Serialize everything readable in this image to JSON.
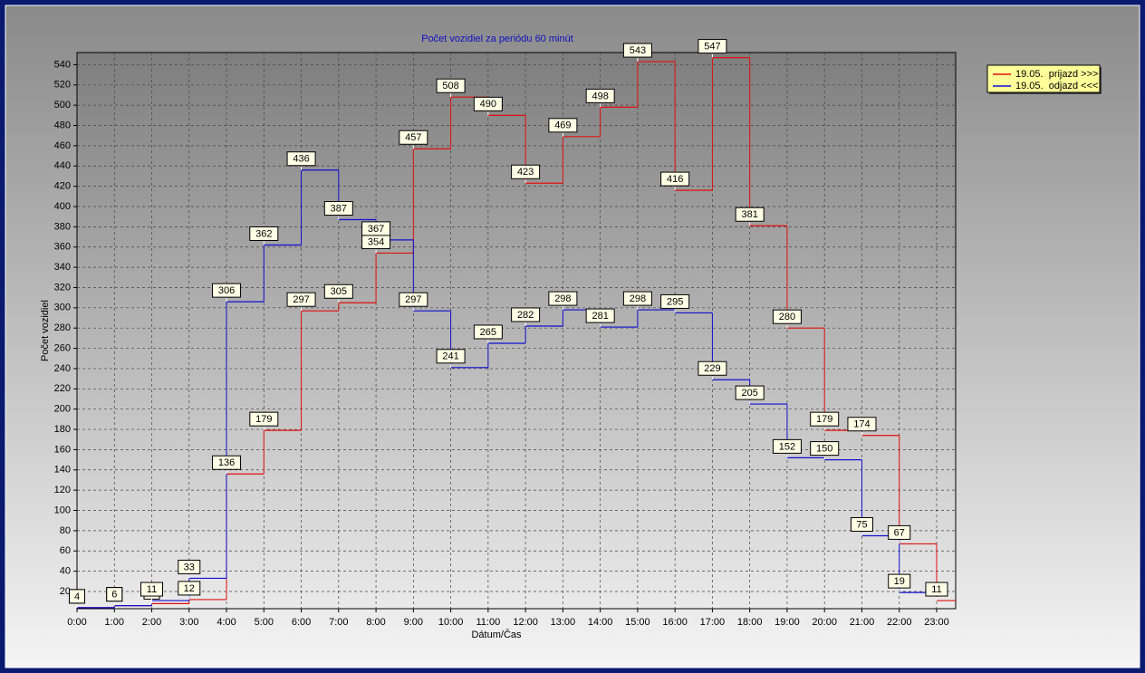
{
  "chart_data": {
    "type": "line",
    "step": true,
    "title": "Počet vozidiel za periódu 60 minút",
    "xlabel": "Dátum/Čas",
    "ylabel": "Počet vozidiel",
    "categories": [
      "0:00",
      "1:00",
      "2:00",
      "3:00",
      "4:00",
      "5:00",
      "6:00",
      "7:00",
      "8:00",
      "9:00",
      "10:00",
      "11:00",
      "12:00",
      "13:00",
      "14:00",
      "15:00",
      "16:00",
      "17:00",
      "18:00",
      "19:00",
      "20:00",
      "21:00",
      "22:00",
      "23:00"
    ],
    "series": [
      {
        "name": "19.05.  prijazd >>>",
        "color": "#e01010",
        "values": [
          4,
          6,
          8,
          12,
          136,
          179,
          297,
          305,
          354,
          457,
          508,
          490,
          423,
          469,
          498,
          543,
          416,
          547,
          381,
          280,
          179,
          174,
          67,
          11
        ]
      },
      {
        "name": "19.05.  odjazd <<<",
        "color": "#1010d0",
        "values": [
          4,
          6,
          11,
          33,
          306,
          362,
          436,
          387,
          367,
          297,
          241,
          265,
          282,
          298,
          281,
          298,
          295,
          229,
          205,
          152,
          150,
          75,
          19,
          null
        ]
      }
    ],
    "ylim": [
      3,
      552
    ],
    "yticks": [
      20,
      40,
      60,
      80,
      100,
      120,
      140,
      160,
      180,
      200,
      220,
      240,
      260,
      280,
      300,
      320,
      340,
      360,
      380,
      400,
      420,
      440,
      460,
      480,
      500,
      520,
      540
    ],
    "grid": true,
    "legend": "upper right"
  }
}
